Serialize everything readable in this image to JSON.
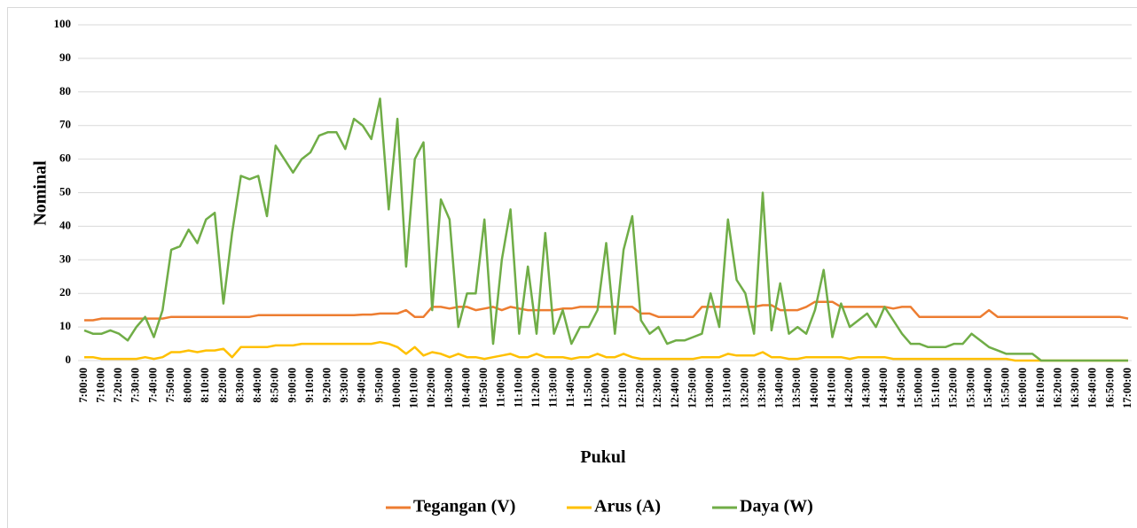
{
  "chart_data": {
    "type": "line",
    "x_label": "Pukul",
    "y_label": "Nominal",
    "ylim": [
      0,
      100
    ],
    "yticks": [
      0,
      10,
      20,
      30,
      40,
      50,
      60,
      70,
      80,
      90,
      100
    ],
    "grid": true,
    "legend": "bottom",
    "categories": [
      "7:00:00",
      null,
      "7:10:00",
      null,
      "7:20:00",
      null,
      "7:30:00",
      null,
      "7:40:00",
      null,
      "7:50:00",
      null,
      "8:00:00",
      null,
      "8:10:00",
      null,
      "8:20:00",
      null,
      "8:30:00",
      null,
      "8:40:00",
      null,
      "8:50:00",
      null,
      "9:00:00",
      null,
      "9:10:00",
      null,
      "9:20:00",
      null,
      "9:30:00",
      null,
      "9:40:00",
      null,
      "9:50:00",
      null,
      "10:00:00",
      null,
      "10:10:00",
      null,
      "10:20:00",
      null,
      "10:30:00",
      null,
      "10:40:00",
      null,
      "10:50:00",
      null,
      "11:00:00",
      null,
      "11:10:00",
      null,
      "11:20:00",
      null,
      "11:30:00",
      null,
      "11:40:00",
      null,
      "11:50:00",
      null,
      "12:00:00",
      null,
      "12:10:00",
      null,
      "12:20:00",
      null,
      "12:30:00",
      null,
      "12:40:00",
      null,
      "12:50:00",
      null,
      "13:00:00",
      null,
      "13:10:00",
      null,
      "13:20:00",
      null,
      "13:30:00",
      null,
      "13:40:00",
      null,
      "13:50:00",
      null,
      "14:00:00",
      null,
      "14:10:00",
      null,
      "14:20:00",
      null,
      "14:30:00",
      null,
      "14:40:00",
      null,
      "14:50:00",
      null,
      "15:00:00",
      null,
      "15:10:00",
      null,
      "15:20:00",
      null,
      "15:30:00",
      null,
      "15:40:00",
      null,
      "15:50:00",
      null,
      "16:00:00",
      null,
      "16:10:00",
      null,
      "16:20:00",
      null,
      "16:30:00",
      null,
      "16:40:00",
      null,
      "16:50:00",
      null,
      "17:00:00"
    ],
    "series": [
      {
        "name": "Tegangan (V)",
        "color": "#ed7d31",
        "values": [
          12,
          12,
          12.5,
          12.5,
          12.5,
          12.5,
          12.5,
          12.5,
          12.5,
          12.5,
          13,
          13,
          13,
          13,
          13,
          13,
          13,
          13,
          13,
          13,
          13.5,
          13.5,
          13.5,
          13.5,
          13.5,
          13.5,
          13.5,
          13.5,
          13.5,
          13.5,
          13.5,
          13.5,
          13.7,
          13.7,
          14,
          14,
          14,
          15,
          13,
          13,
          16,
          16,
          15.5,
          16,
          16,
          15,
          15.5,
          16,
          15,
          16,
          15.5,
          15,
          15,
          15,
          15,
          15.5,
          15.5,
          16,
          16,
          16,
          16,
          16,
          16,
          16,
          14,
          14,
          13,
          13,
          13,
          13,
          13,
          16,
          16,
          16,
          16,
          16,
          16,
          16,
          16.5,
          16.5,
          15,
          15,
          15,
          16,
          17.5,
          17.5,
          17.5,
          16,
          16,
          16,
          16,
          16,
          16,
          15.5,
          16,
          16,
          13,
          13,
          13,
          13,
          13,
          13,
          13,
          13,
          15,
          13,
          13,
          13,
          13,
          13,
          13,
          13,
          13,
          13,
          13,
          13,
          13,
          13,
          13,
          13,
          12.5
        ]
      },
      {
        "name": "Arus (A)",
        "color": "#ffc000",
        "values": [
          1,
          1,
          0.5,
          0.5,
          0.5,
          0.5,
          0.5,
          1,
          0.5,
          1,
          2.5,
          2.5,
          3,
          2.5,
          3,
          3,
          3.5,
          1,
          4,
          4,
          4,
          4,
          4.5,
          4.5,
          4.5,
          5,
          5,
          5,
          5,
          5,
          5,
          5,
          5,
          5,
          5.5,
          5,
          4,
          2,
          4,
          1.5,
          2.5,
          2,
          1,
          2,
          1,
          1,
          0.5,
          1,
          1.5,
          2,
          1,
          1,
          2,
          1,
          1,
          1,
          0.5,
          1,
          1,
          2,
          1,
          1,
          2,
          1,
          0.5,
          0.5,
          0.5,
          0.5,
          0.5,
          0.5,
          0.5,
          1,
          1,
          1,
          2,
          1.5,
          1.5,
          1.5,
          2.5,
          1,
          1,
          0.5,
          0.5,
          1,
          1,
          1,
          1,
          1,
          0.5,
          1,
          1,
          1,
          1,
          0.5,
          0.5,
          0.5,
          0.5,
          0.5,
          0.5,
          0.5,
          0.5,
          0.5,
          0.5,
          0.5,
          0.5,
          0.5,
          0.5,
          0,
          0,
          0,
          0,
          0,
          0,
          0,
          0,
          0,
          0,
          0,
          0,
          0,
          0
        ]
      },
      {
        "name": "Daya (W)",
        "color": "#70ad47",
        "values": [
          9,
          8,
          8,
          9,
          8,
          6,
          10,
          13,
          7,
          15,
          33,
          34,
          39,
          35,
          42,
          44,
          17,
          38,
          55,
          54,
          55,
          43,
          64,
          60,
          56,
          60,
          62,
          67,
          68,
          68,
          63,
          72,
          70,
          66,
          78,
          45,
          72,
          28,
          60,
          65,
          15,
          48,
          42,
          10,
          20,
          20,
          42,
          5,
          30,
          45,
          8,
          28,
          8,
          38,
          8,
          15,
          5,
          10,
          10,
          15,
          35,
          8,
          33,
          43,
          12,
          8,
          10,
          5,
          6,
          6,
          7,
          8,
          20,
          10,
          42,
          24,
          20,
          8,
          50,
          9,
          23,
          8,
          10,
          8,
          15,
          27,
          7,
          17,
          10,
          12,
          14,
          10,
          16,
          12,
          8,
          5,
          5,
          4,
          4,
          4,
          5,
          5,
          8,
          6,
          4,
          3,
          2,
          2,
          2,
          2,
          0,
          0,
          0,
          0,
          0,
          0,
          0,
          0,
          0,
          0,
          0
        ]
      }
    ]
  }
}
